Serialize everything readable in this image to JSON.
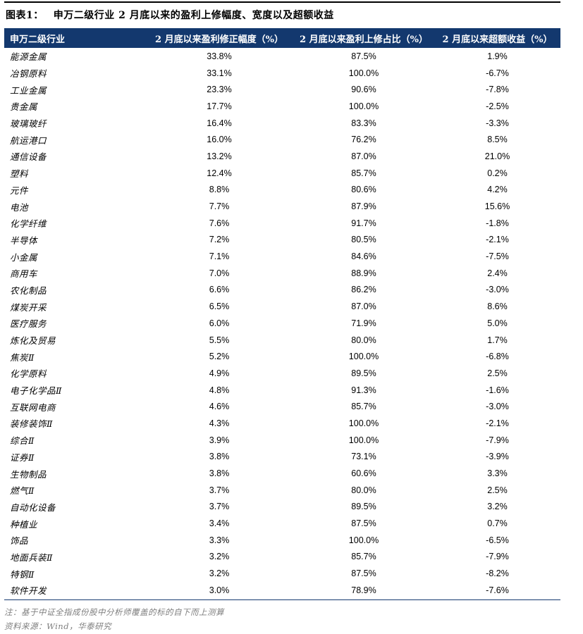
{
  "figure": {
    "label": "图表1：",
    "title": "申万二级行业 2 月底以来的盈利上修幅度、宽度以及超额收益"
  },
  "colors": {
    "header_bg": "#13386E",
    "header_text": "#FFFFFF",
    "top_rule": "#000000",
    "bottom_rule": "#13386E",
    "note_text": "#7F7F7F"
  },
  "chart_data": {
    "type": "table",
    "title": "申万二级行业 2 月底以来的盈利上修幅度、宽度以及超额收益",
    "columns": [
      "申万二级行业",
      "2 月底以来盈利修正幅度（%）",
      "2 月底以来盈利上修占比（%）",
      "2 月底以来超额收益（%）"
    ],
    "rows": [
      [
        "能源金属",
        "33.8%",
        "87.5%",
        "1.9%"
      ],
      [
        "冶钢原料",
        "33.1%",
        "100.0%",
        "-6.7%"
      ],
      [
        "工业金属",
        "23.3%",
        "90.6%",
        "-7.8%"
      ],
      [
        "贵金属",
        "17.7%",
        "100.0%",
        "-2.5%"
      ],
      [
        "玻璃玻纤",
        "16.4%",
        "83.3%",
        "-3.3%"
      ],
      [
        "航运港口",
        "16.0%",
        "76.2%",
        "8.5%"
      ],
      [
        "通信设备",
        "13.2%",
        "87.0%",
        "21.0%"
      ],
      [
        "塑料",
        "12.4%",
        "85.7%",
        "0.2%"
      ],
      [
        "元件",
        "8.8%",
        "80.6%",
        "4.2%"
      ],
      [
        "电池",
        "7.7%",
        "87.9%",
        "15.6%"
      ],
      [
        "化学纤维",
        "7.6%",
        "91.7%",
        "-1.8%"
      ],
      [
        "半导体",
        "7.2%",
        "80.5%",
        "-2.1%"
      ],
      [
        "小金属",
        "7.1%",
        "84.6%",
        "-7.5%"
      ],
      [
        "商用车",
        "7.0%",
        "88.9%",
        "2.4%"
      ],
      [
        "农化制品",
        "6.6%",
        "86.2%",
        "-3.0%"
      ],
      [
        "煤炭开采",
        "6.5%",
        "87.0%",
        "8.6%"
      ],
      [
        "医疗服务",
        "6.0%",
        "71.9%",
        "5.0%"
      ],
      [
        "炼化及贸易",
        "5.5%",
        "80.0%",
        "1.7%"
      ],
      [
        "焦炭Ⅱ",
        "5.2%",
        "100.0%",
        "-6.8%"
      ],
      [
        "化学原料",
        "4.9%",
        "89.5%",
        "2.5%"
      ],
      [
        "电子化学品Ⅱ",
        "4.8%",
        "91.3%",
        "-1.6%"
      ],
      [
        "互联网电商",
        "4.6%",
        "85.7%",
        "-3.0%"
      ],
      [
        "装修装饰Ⅱ",
        "4.3%",
        "100.0%",
        "-2.1%"
      ],
      [
        "综合Ⅱ",
        "3.9%",
        "100.0%",
        "-7.9%"
      ],
      [
        "证券Ⅱ",
        "3.8%",
        "73.1%",
        "-3.9%"
      ],
      [
        "生物制品",
        "3.8%",
        "60.6%",
        "3.3%"
      ],
      [
        "燃气Ⅱ",
        "3.7%",
        "80.0%",
        "2.5%"
      ],
      [
        "自动化设备",
        "3.7%",
        "89.5%",
        "3.2%"
      ],
      [
        "种植业",
        "3.4%",
        "87.5%",
        "0.7%"
      ],
      [
        "饰品",
        "3.3%",
        "100.0%",
        "-6.5%"
      ],
      [
        "地面兵装Ⅱ",
        "3.2%",
        "85.7%",
        "-7.9%"
      ],
      [
        "特钢Ⅱ",
        "3.2%",
        "87.5%",
        "-8.2%"
      ],
      [
        "软件开发",
        "3.0%",
        "78.9%",
        "-7.6%"
      ]
    ]
  },
  "notes": {
    "note": "注：基于中证全指成份股中分析师覆盖的标的自下而上测算",
    "source": "资料来源：Wind，华泰研究"
  }
}
